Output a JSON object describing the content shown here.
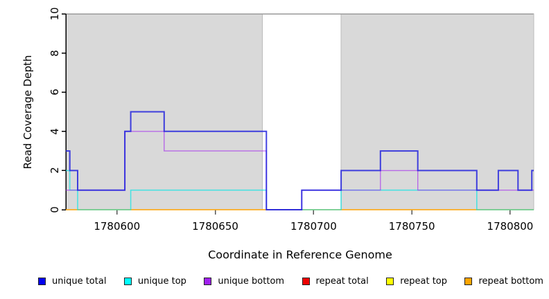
{
  "chart_data": {
    "type": "line",
    "subtype": "step-coverage",
    "title": "",
    "xlabel": "Coordinate in Reference Genome",
    "ylabel": "Read Coverage Depth",
    "xlim": [
      1780574,
      1780812
    ],
    "ylim": [
      0,
      10
    ],
    "x_ticks": [
      1780600,
      1780650,
      1780700,
      1780750,
      1780800
    ],
    "y_ticks": [
      0,
      2,
      4,
      6,
      8,
      10
    ],
    "grid": false,
    "background": "#ffffff",
    "shade_color": "#d9d9d9",
    "shade_border_color": "#bbbbbb",
    "axis_color": "#000000",
    "box_color": "#999999",
    "shaded_regions": [
      {
        "start": 1780574,
        "end": 1780674
      },
      {
        "start": 1780714,
        "end": 1780812
      }
    ],
    "series": [
      {
        "name": "repeat total",
        "color": "#dd0000",
        "opacity": 1,
        "width": 1,
        "steps": [
          [
            1780574,
            0
          ],
          [
            1780812,
            0
          ]
        ]
      },
      {
        "name": "repeat top",
        "color": "#ffff00",
        "opacity": 1,
        "width": 1,
        "steps": [
          [
            1780574,
            0
          ],
          [
            1780812,
            0
          ]
        ]
      },
      {
        "name": "repeat bottom",
        "color": "#ffa200",
        "opacity": 1,
        "width": 1.6,
        "steps": [
          [
            1780574,
            0
          ],
          [
            1780812,
            0
          ]
        ]
      },
      {
        "name": "unique top",
        "color": "#00e5e5",
        "opacity": 0.65,
        "width": 1.6,
        "steps": [
          [
            1780574,
            2
          ],
          [
            1780576,
            1
          ],
          [
            1780580,
            0
          ],
          [
            1780607,
            1
          ],
          [
            1780676,
            0
          ],
          [
            1780714,
            1
          ],
          [
            1780783,
            0
          ],
          [
            1780812,
            0
          ]
        ]
      },
      {
        "name": "unique bottom",
        "color": "#a020f0",
        "opacity": 0.6,
        "width": 1.4,
        "steps": [
          [
            1780574,
            1
          ],
          [
            1780604,
            4
          ],
          [
            1780624,
            3
          ],
          [
            1780676,
            0
          ],
          [
            1780694,
            1
          ],
          [
            1780734,
            2
          ],
          [
            1780753,
            1
          ],
          [
            1780812,
            1
          ]
        ]
      },
      {
        "name": "unique total",
        "color": "#2222dd",
        "opacity": 0.85,
        "width": 2,
        "steps": [
          [
            1780574,
            3
          ],
          [
            1780576,
            2
          ],
          [
            1780580,
            1
          ],
          [
            1780604,
            4
          ],
          [
            1780607,
            5
          ],
          [
            1780624,
            4
          ],
          [
            1780676,
            0
          ],
          [
            1780694,
            1
          ],
          [
            1780714,
            2
          ],
          [
            1780734,
            3
          ],
          [
            1780753,
            2
          ],
          [
            1780783,
            1
          ],
          [
            1780794,
            2
          ],
          [
            1780804,
            1
          ],
          [
            1780811,
            2
          ],
          [
            1780812,
            2
          ]
        ]
      }
    ],
    "legend": {
      "position": "bottom",
      "items": [
        {
          "label": "unique total",
          "color": "#0000ee"
        },
        {
          "label": "unique top",
          "color": "#00ffff"
        },
        {
          "label": "unique bottom",
          "color": "#a020f0"
        },
        {
          "label": "repeat total",
          "color": "#ee0000"
        },
        {
          "label": "repeat top",
          "color": "#ffff00"
        },
        {
          "label": "repeat bottom",
          "color": "#ffa500"
        }
      ]
    }
  }
}
